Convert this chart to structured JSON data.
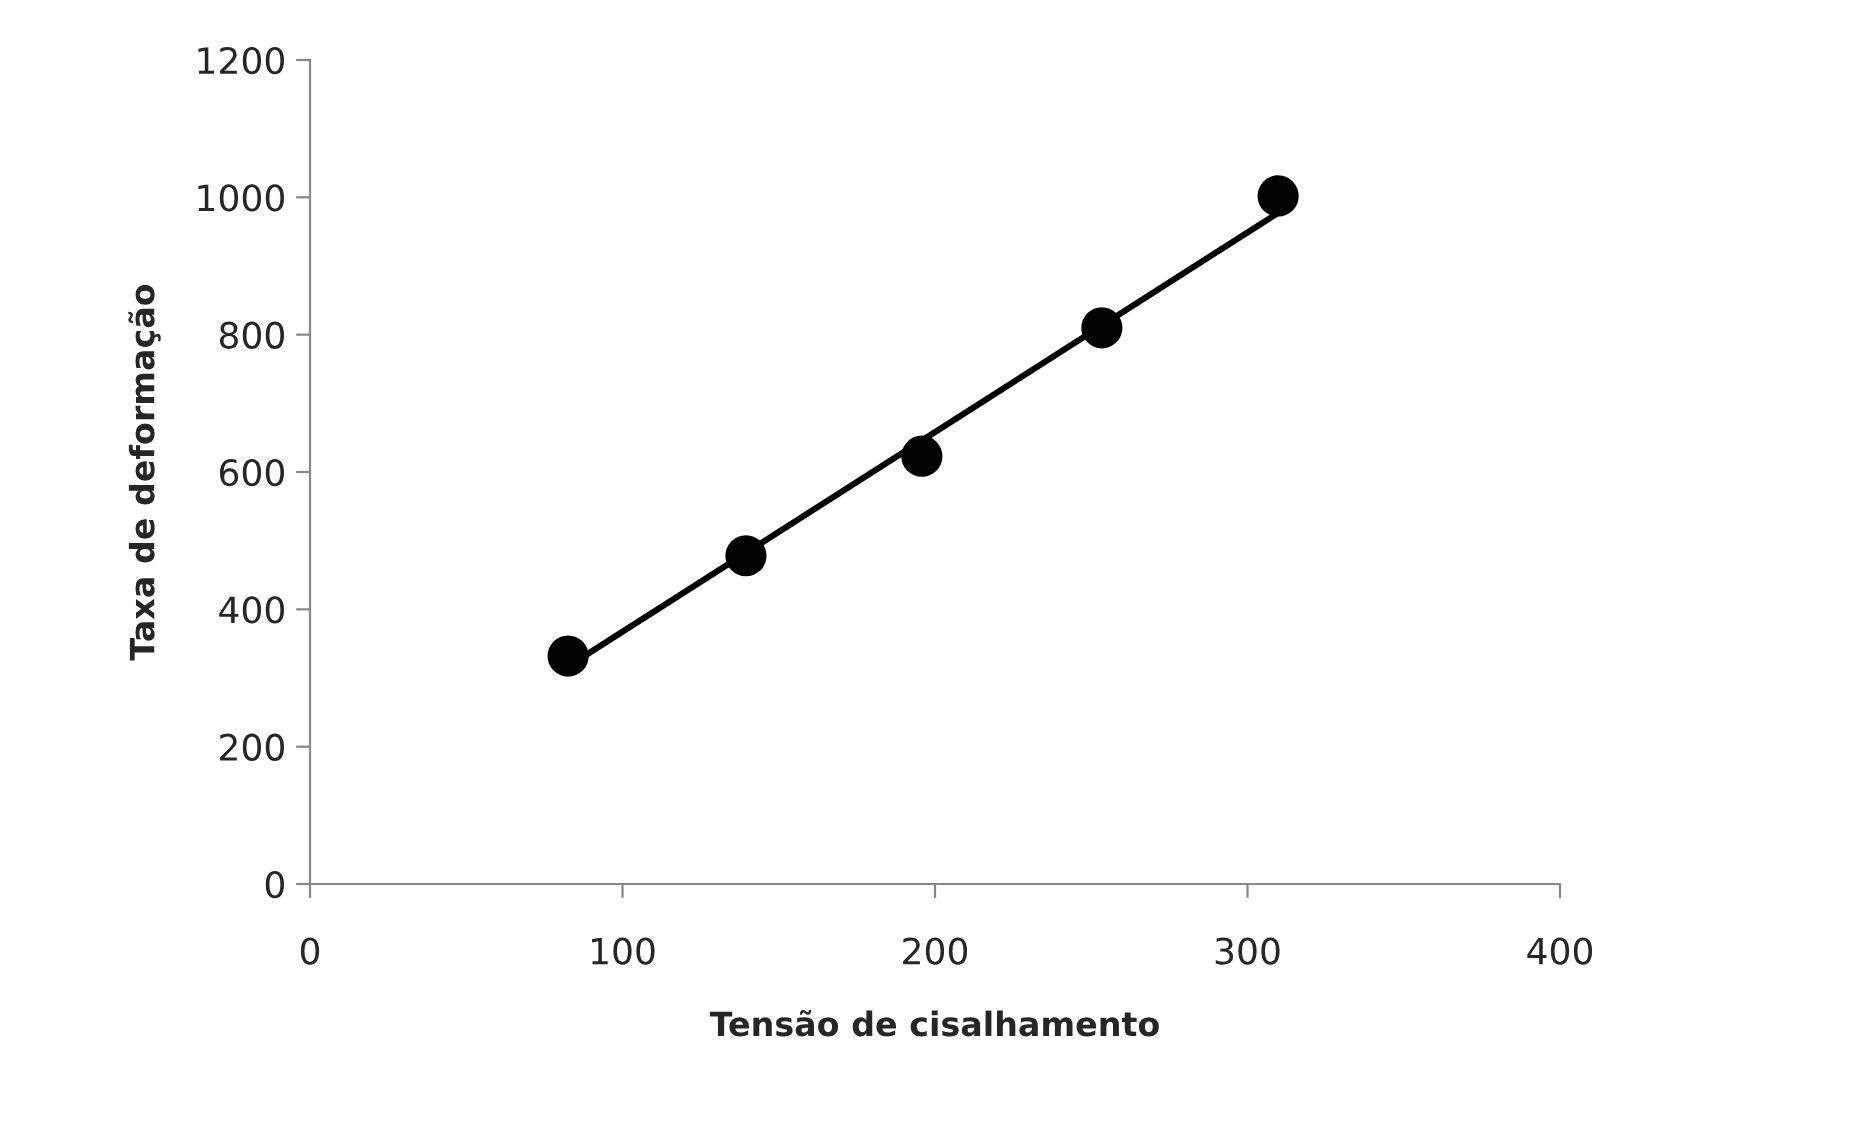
{
  "chart_data": {
    "type": "scatter",
    "xlabel": "Tensão de cisalhamento",
    "ylabel": "Taxa de deformação",
    "xlim": [
      0,
      400
    ],
    "xticks": [
      0,
      100,
      200,
      300,
      400
    ],
    "ylim": [
      0,
      1200
    ],
    "yticks": [
      0,
      200,
      400,
      600,
      800,
      1000,
      1200
    ],
    "grid": false,
    "legend": false,
    "marker": "circle",
    "series": [
      {
        "color": "#000000",
        "x": [
          82.6,
          139.5,
          195.8,
          253.4,
          309.8
        ],
        "values": [
          332,
          478,
          623,
          810,
          1002
        ]
      },
      {
        "type": "line",
        "color": "#000000",
        "line_style": "solid",
        "marker": "none",
        "x": [
          83,
          310
        ],
        "values": [
          318,
          978
        ]
      }
    ]
  }
}
